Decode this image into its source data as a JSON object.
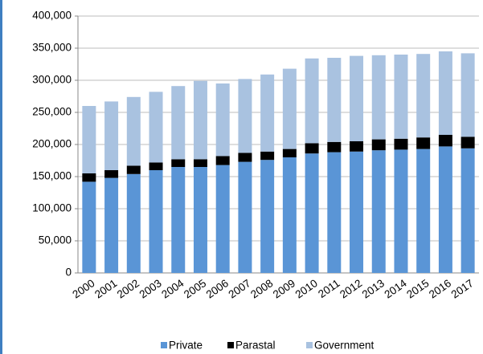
{
  "chart_data": {
    "type": "stacked-bar",
    "categories": [
      "2000",
      "2001",
      "2002",
      "2003",
      "2004",
      "2005",
      "2006",
      "2007",
      "2008",
      "2009",
      "2010",
      "2011",
      "2012",
      "2013",
      "2014",
      "2015",
      "2016",
      "2017"
    ],
    "series": [
      {
        "name": "Private",
        "color": "#5a95d6",
        "values": [
          142000,
          148000,
          154000,
          160000,
          165000,
          165000,
          168000,
          173000,
          176000,
          180000,
          186000,
          188000,
          189000,
          191000,
          192000,
          193000,
          197000,
          194000
        ]
      },
      {
        "name": "Parastal",
        "color": "#000000",
        "values": [
          13000,
          12000,
          13000,
          12000,
          12000,
          12000,
          14000,
          14000,
          13000,
          13000,
          16000,
          16000,
          16000,
          17000,
          17000,
          18000,
          18000,
          18000
        ]
      },
      {
        "name": "Government",
        "color": "#a9c2e0",
        "values": [
          105000,
          107000,
          107000,
          110000,
          114000,
          122000,
          113000,
          115000,
          120000,
          125000,
          132000,
          131000,
          133000,
          131000,
          131000,
          130000,
          130000,
          130000
        ]
      }
    ],
    "ylim": [
      0,
      400000
    ],
    "yticks": [
      0,
      {
        "value": 50000,
        "label": "50,000"
      },
      {
        "value": 100000,
        "label": "100,000"
      },
      {
        "value": 150000,
        "label": "150,000"
      },
      {
        "value": 200000,
        "label": "200,000"
      },
      {
        "value": 250000,
        "label": "250,000"
      },
      {
        "value": 300000,
        "label": "300,000"
      },
      {
        "value": 350000,
        "label": "350,000"
      },
      {
        "value": 400000,
        "label": "400,000"
      }
    ],
    "grid": true,
    "legend": "bottom"
  }
}
